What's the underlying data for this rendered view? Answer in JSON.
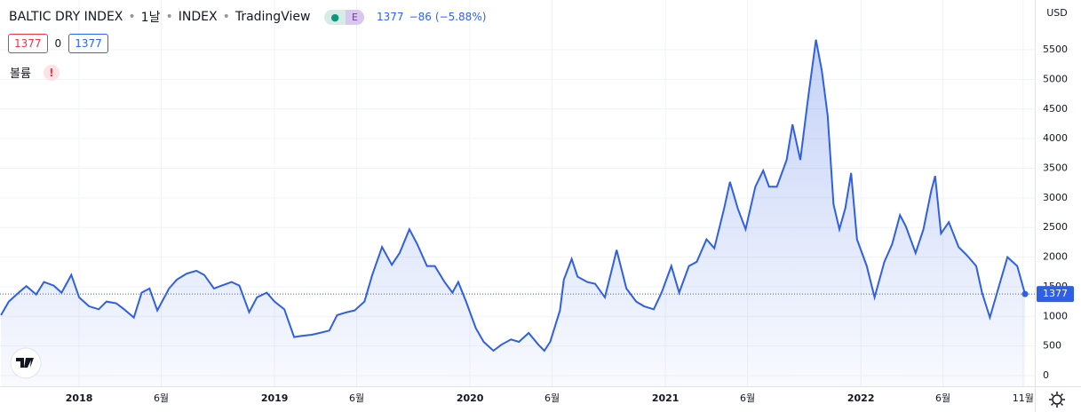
{
  "header": {
    "symbol": "BALTIC DRY INDEX",
    "interval": "1날",
    "exchange": "INDEX",
    "source": "TradingView",
    "badge": "E",
    "price": "1377",
    "change": "−86",
    "change_pct": "(−5.88%)",
    "sell": "1377",
    "spread": "0",
    "buy": "1377",
    "volume": "볼륨",
    "warning": "!"
  },
  "chart_data": {
    "type": "line",
    "currency": "USD",
    "color": "#2f5fe3",
    "grid": true,
    "x": [
      2017.6,
      2017.64,
      2017.69,
      2017.73,
      2017.78,
      2017.82,
      2017.87,
      2017.91,
      2017.96,
      2018.0,
      2018.05,
      2018.1,
      2018.14,
      2018.19,
      2018.23,
      2018.28,
      2018.32,
      2018.36,
      2018.4,
      2018.46,
      2018.5,
      2018.55,
      2018.6,
      2018.64,
      2018.69,
      2018.73,
      2018.78,
      2018.82,
      2018.87,
      2018.91,
      2018.96,
      2019.0,
      2019.05,
      2019.1,
      2019.14,
      2019.19,
      2019.23,
      2019.28,
      2019.32,
      2019.37,
      2019.41,
      2019.46,
      2019.5,
      2019.55,
      2019.6,
      2019.64,
      2019.69,
      2019.73,
      2019.78,
      2019.82,
      2019.87,
      2019.91,
      2019.94,
      2019.98,
      2020.03,
      2020.07,
      2020.12,
      2020.16,
      2020.21,
      2020.25,
      2020.3,
      2020.35,
      2020.38,
      2020.41,
      2020.46,
      2020.48,
      2020.52,
      2020.55,
      2020.6,
      2020.64,
      2020.69,
      2020.73,
      2020.75,
      2020.8,
      2020.85,
      2020.89,
      2020.94,
      2020.98,
      2021.03,
      2021.07,
      2021.12,
      2021.16,
      2021.21,
      2021.25,
      2021.3,
      2021.33,
      2021.37,
      2021.41,
      2021.46,
      2021.5,
      2021.53,
      2021.57,
      2021.62,
      2021.65,
      2021.69,
      2021.73,
      2021.77,
      2021.8,
      2021.83,
      2021.86,
      2021.89,
      2021.92,
      2021.95,
      2021.98,
      2022.03,
      2022.07,
      2022.12,
      2022.16,
      2022.2,
      2022.23,
      2022.28,
      2022.32,
      2022.36,
      2022.38,
      2022.41,
      2022.45,
      2022.5,
      2022.54,
      2022.59,
      2022.62,
      2022.66,
      2022.71,
      2022.75,
      2022.8,
      2022.84
    ],
    "values": [
      1020,
      1250,
      1400,
      1510,
      1370,
      1580,
      1520,
      1400,
      1700,
      1320,
      1170,
      1120,
      1250,
      1220,
      1120,
      980,
      1400,
      1470,
      1100,
      1470,
      1620,
      1720,
      1770,
      1700,
      1470,
      1520,
      1580,
      1520,
      1070,
      1320,
      1400,
      1250,
      1120,
      650,
      670,
      690,
      720,
      760,
      1020,
      1070,
      1100,
      1250,
      1700,
      2170,
      1870,
      2070,
      2470,
      2220,
      1850,
      1850,
      1580,
      1400,
      1580,
      1250,
      800,
      570,
      420,
      520,
      610,
      570,
      720,
      520,
      420,
      570,
      1100,
      1620,
      1970,
      1670,
      1580,
      1550,
      1320,
      1850,
      2120,
      1470,
      1250,
      1170,
      1120,
      1400,
      1850,
      1400,
      1850,
      1920,
      2300,
      2150,
      2820,
      3270,
      2820,
      2470,
      3190,
      3460,
      3190,
      3190,
      3640,
      4240,
      3640,
      4690,
      5670,
      5150,
      4390,
      2890,
      2470,
      2820,
      3420,
      2300,
      1850,
      1320,
      1920,
      2220,
      2710,
      2520,
      2070,
      2470,
      3120,
      3370,
      2400,
      2590,
      2170,
      2040,
      1850,
      1400,
      980,
      1550,
      2000,
      1850,
      1377
    ],
    "xlim": [
      2017.595,
      2022.89
    ],
    "ylim": [
      -180,
      6340
    ],
    "xticks": [
      {
        "value": 2018.0,
        "label": "2018"
      },
      {
        "value": 2018.42,
        "label": "6월"
      },
      {
        "value": 2019.0,
        "label": "2019"
      },
      {
        "value": 2019.42,
        "label": "6월"
      },
      {
        "value": 2020.0,
        "label": "2020"
      },
      {
        "value": 2020.42,
        "label": "6월"
      },
      {
        "value": 2021.0,
        "label": "2021"
      },
      {
        "value": 2021.42,
        "label": "6월"
      },
      {
        "value": 2022.0,
        "label": "2022"
      },
      {
        "value": 2022.42,
        "label": "6월"
      },
      {
        "value": 2022.83,
        "label": "11월"
      }
    ],
    "yticks": [
      0,
      500,
      1000,
      1500,
      2000,
      2500,
      3000,
      3500,
      4000,
      4500,
      5000,
      5500
    ]
  }
}
